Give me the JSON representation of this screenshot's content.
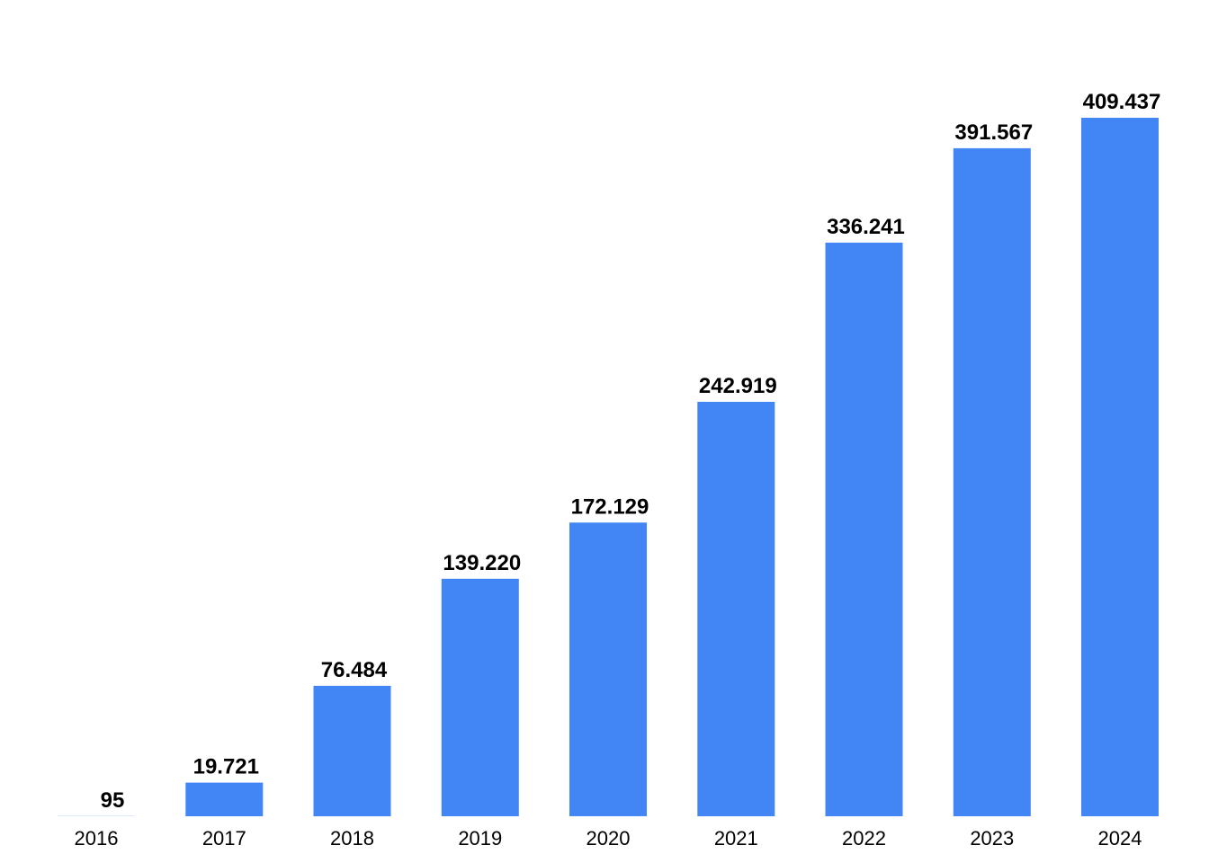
{
  "colors": {
    "bar": "#4285f4",
    "background": "#ffffff",
    "text": "#000000"
  },
  "chart_data": {
    "type": "bar",
    "title": "",
    "xlabel": "",
    "ylabel": "",
    "categories": [
      "2016",
      "2017",
      "2018",
      "2019",
      "2020",
      "2021",
      "2022",
      "2023",
      "2024"
    ],
    "values": [
      95,
      19721,
      76484,
      139220,
      172129,
      242919,
      336241,
      391567,
      409437
    ],
    "value_labels": [
      "95",
      "19.721",
      "76.484",
      "139.220",
      "172.129",
      "242.919",
      "336.241",
      "391.567",
      "409.437"
    ],
    "ylim": [
      0,
      430000
    ],
    "grid": false,
    "legend": "none",
    "data_labels": "above-bars"
  }
}
